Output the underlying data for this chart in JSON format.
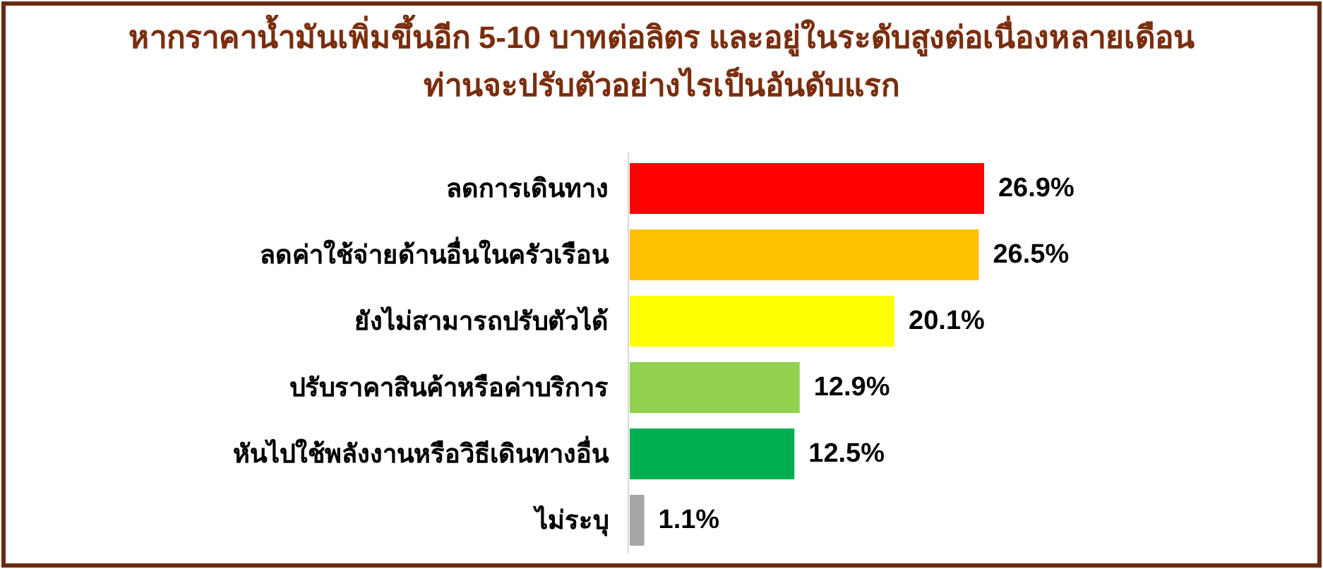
{
  "chart_data": {
    "type": "bar",
    "orientation": "horizontal",
    "title": "หากราคาน้ำมันเพิ่มขึ้นอีก 5-10 บาทต่อลิตร และอยู่ในระดับสูงต่อเนื่องหลายเดือน\nท่านจะปรับตัวอย่างไรเป็นอันดับแรก",
    "categories": [
      "ลดการเดินทาง",
      "ลดค่าใช้จ่ายด้านอื่นในครัวเรือน",
      "ยังไม่สามารถปรับตัวได้",
      "ปรับราคาสินค้าหรือค่าบริการ",
      "หันไปใช้พลังงานหรือวิธีเดินทางอื่น",
      "ไม่ระบุ"
    ],
    "values": [
      26.9,
      26.5,
      20.1,
      12.9,
      12.5,
      1.1
    ],
    "colors": [
      "#ff0000",
      "#ffc000",
      "#ffff00",
      "#92d050",
      "#00b050",
      "#a6a6a6"
    ],
    "value_labels": [
      "26.9%",
      "26.5%",
      "20.1%",
      "12.9%",
      "12.5%",
      "1.1%"
    ]
  }
}
